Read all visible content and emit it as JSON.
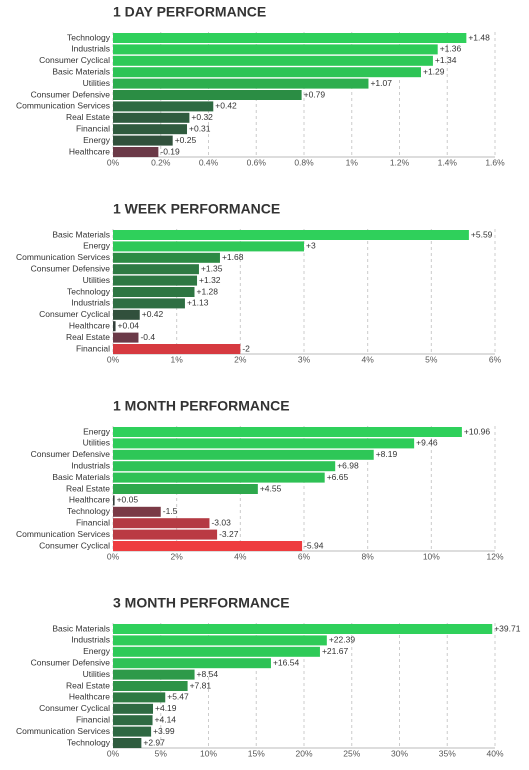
{
  "chart_data": [
    {
      "type": "bar",
      "orientation": "horizontal",
      "title": "1 DAY PERFORMANCE",
      "categories": [
        "Technology",
        "Industrials",
        "Consumer Cyclical",
        "Basic Materials",
        "Utilities",
        "Consumer Defensive",
        "Communication Services",
        "Real Estate",
        "Financial",
        "Energy",
        "Healthcare"
      ],
      "values": [
        1.48,
        1.36,
        1.34,
        1.29,
        1.07,
        0.79,
        0.42,
        0.32,
        0.31,
        0.25,
        -0.19
      ],
      "value_labels": [
        "+1.48",
        "+1.36",
        "+1.34",
        "+1.29",
        "+1.07",
        "+0.79",
        "+0.42",
        "+0.32",
        "+0.31",
        "+0.25",
        "-0.19"
      ],
      "colors": [
        "#2fd05b",
        "#2ecb58",
        "#2ec957",
        "#2ec456",
        "#2dae4e",
        "#2b8d44",
        "#2e6a42",
        "#2f5c3f",
        "#2f5b3e",
        "#31513c",
        "#6b3a48"
      ],
      "xlim": [
        0,
        1.6
      ],
      "xticks": [
        {
          "value": 0,
          "label": "0%"
        },
        {
          "value": 0.2,
          "label": "0.2%"
        },
        {
          "value": 0.4,
          "label": "0.4%"
        },
        {
          "value": 0.6,
          "label": "0.6%"
        },
        {
          "value": 0.8,
          "label": "0.8%"
        },
        {
          "value": 1,
          "label": "1%"
        },
        {
          "value": 1.2,
          "label": "1.2%"
        },
        {
          "value": 1.4,
          "label": "1.4%"
        },
        {
          "value": 1.6,
          "label": "1.6%"
        }
      ],
      "grid": true
    },
    {
      "type": "bar",
      "orientation": "horizontal",
      "title": "1 WEEK PERFORMANCE",
      "categories": [
        "Basic Materials",
        "Energy",
        "Communication Services",
        "Consumer Defensive",
        "Utilities",
        "Technology",
        "Industrials",
        "Consumer Cyclical",
        "Healthcare",
        "Real Estate",
        "Financial"
      ],
      "values": [
        5.59,
        3,
        1.68,
        1.35,
        1.32,
        1.28,
        1.13,
        0.42,
        0.04,
        -0.4,
        -2
      ],
      "value_labels": [
        "+5.59",
        "+3",
        "+1.68",
        "+1.35",
        "+1.32",
        "+1.28",
        "+1.13",
        "+0.42",
        "+0.04",
        "-0.4",
        "-2"
      ],
      "colors": [
        "#2fd05b",
        "#2ec857",
        "#2d8a44",
        "#2e7a43",
        "#2e7843",
        "#2e7642",
        "#2e6e42",
        "#31503c",
        "#333f3a",
        "#6b3a48",
        "#d63a40"
      ],
      "xlim": [
        0,
        6
      ],
      "xticks": [
        {
          "value": 0,
          "label": "0%"
        },
        {
          "value": 1,
          "label": "1%"
        },
        {
          "value": 2,
          "label": "2%"
        },
        {
          "value": 3,
          "label": "3%"
        },
        {
          "value": 4,
          "label": "4%"
        },
        {
          "value": 5,
          "label": "5%"
        },
        {
          "value": 6,
          "label": "6%"
        }
      ],
      "grid": true
    },
    {
      "type": "bar",
      "orientation": "horizontal",
      "title": "1 MONTH PERFORMANCE",
      "categories": [
        "Energy",
        "Utilities",
        "Consumer Defensive",
        "Industrials",
        "Basic Materials",
        "Real Estate",
        "Healthcare",
        "Technology",
        "Financial",
        "Communication Services",
        "Consumer Cyclical"
      ],
      "values": [
        10.96,
        9.46,
        8.19,
        6.98,
        6.65,
        4.55,
        0.05,
        -1.5,
        -3.03,
        -3.27,
        -5.94
      ],
      "value_labels": [
        "+10.96",
        "+9.46",
        "+8.19",
        "+6.98",
        "+6.65",
        "+4.55",
        "+0.05",
        "-1.5",
        "-3.03",
        "-3.27",
        "-5.94"
      ],
      "colors": [
        "#2fd05b",
        "#2ecc59",
        "#2ec757",
        "#2ec356",
        "#2ec155",
        "#2ea84c",
        "#333f3a",
        "#7a3a46",
        "#b43a43",
        "#ba3a43",
        "#ee3c3f"
      ],
      "xlim": [
        0,
        12
      ],
      "xticks": [
        {
          "value": 0,
          "label": "0%"
        },
        {
          "value": 2,
          "label": "2%"
        },
        {
          "value": 4,
          "label": "4%"
        },
        {
          "value": 6,
          "label": "6%"
        },
        {
          "value": 8,
          "label": "8%"
        },
        {
          "value": 10,
          "label": "10%"
        },
        {
          "value": 12,
          "label": "12%"
        }
      ],
      "grid": true
    },
    {
      "type": "bar",
      "orientation": "horizontal",
      "title": "3 MONTH PERFORMANCE",
      "categories": [
        "Basic Materials",
        "Industrials",
        "Energy",
        "Consumer Defensive",
        "Utilities",
        "Real Estate",
        "Healthcare",
        "Consumer Cyclical",
        "Financial",
        "Communication Services",
        "Technology"
      ],
      "values": [
        39.71,
        22.39,
        21.67,
        16.54,
        8.54,
        7.81,
        5.47,
        4.19,
        4.14,
        3.99,
        2.97
      ],
      "value_labels": [
        "+39.71",
        "+22.39",
        "+21.67",
        "+16.54",
        "+8.54",
        "+7.81",
        "+5.47",
        "+4.19",
        "+4.14",
        "+3.99",
        "+2.97"
      ],
      "colors": [
        "#2fd05b",
        "#2ecb58",
        "#2eca58",
        "#2ec256",
        "#2e9a49",
        "#2e9347",
        "#2e7a43",
        "#2e6a42",
        "#2e6a42",
        "#2e6842",
        "#2f5c3f"
      ],
      "xlim": [
        0,
        40
      ],
      "xticks": [
        {
          "value": 0,
          "label": "0%"
        },
        {
          "value": 5,
          "label": "5%"
        },
        {
          "value": 10,
          "label": "10%"
        },
        {
          "value": 15,
          "label": "15%"
        },
        {
          "value": 20,
          "label": "20%"
        },
        {
          "value": 25,
          "label": "25%"
        },
        {
          "value": 30,
          "label": "30%"
        },
        {
          "value": 35,
          "label": "35%"
        },
        {
          "value": 40,
          "label": "40%"
        }
      ],
      "grid": true
    }
  ]
}
